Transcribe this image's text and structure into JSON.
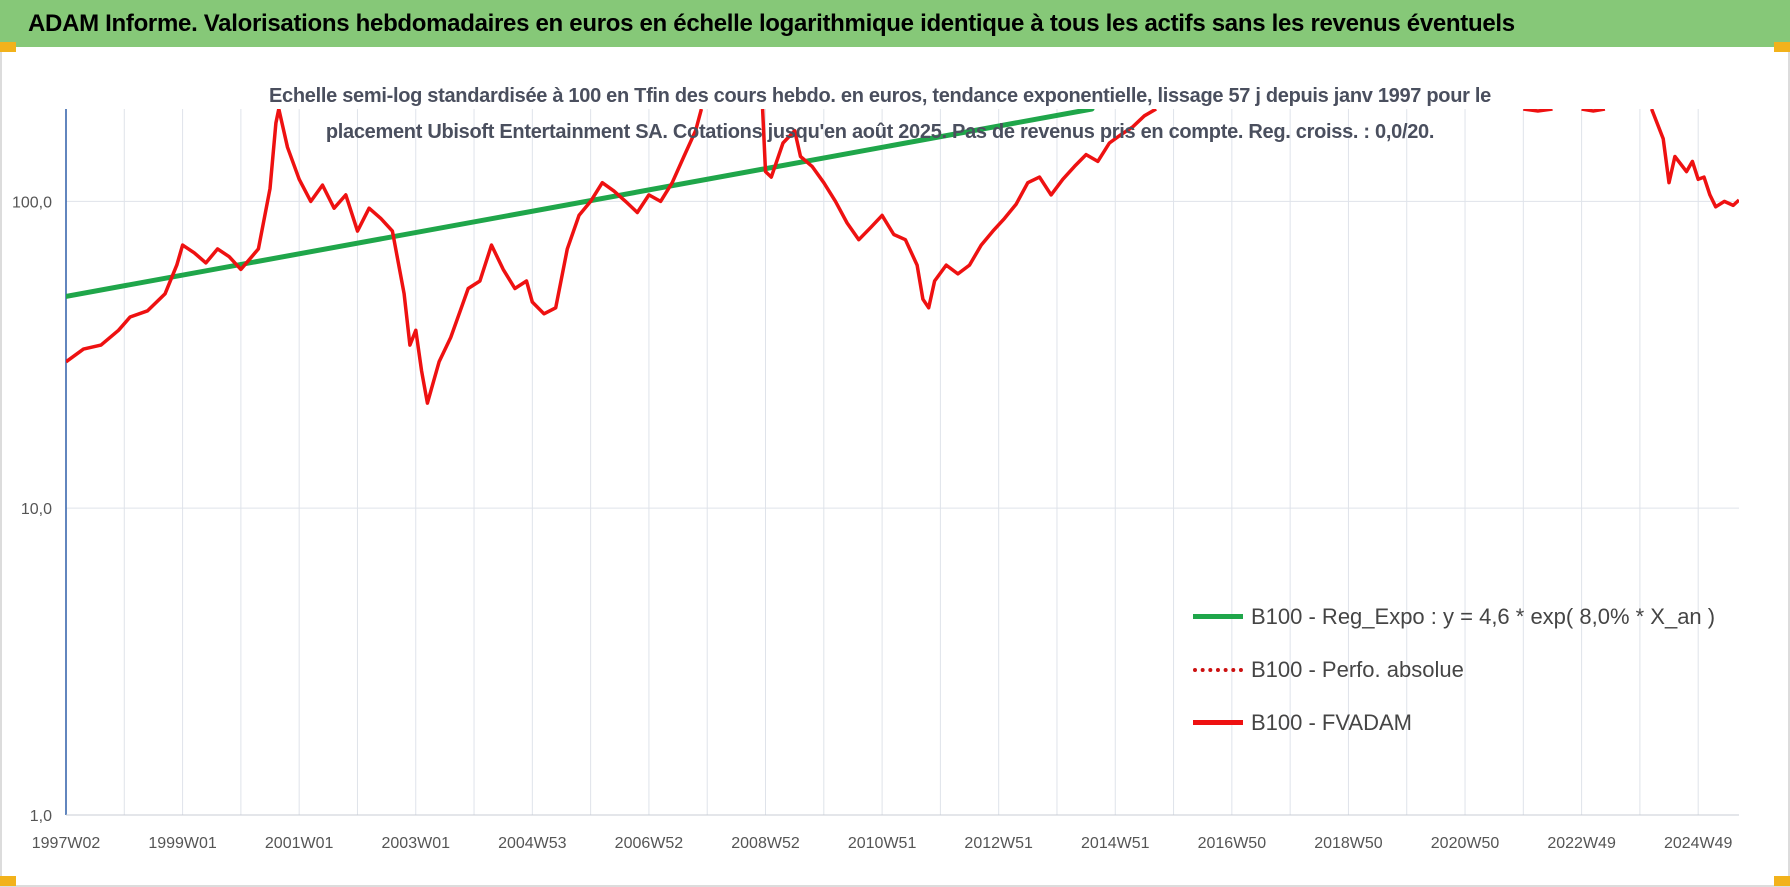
{
  "header": {
    "title": "ADAM Informe. Valorisations hebdomadaires en euros en échelle logarithmique identique à tous les actifs sans les revenus éventuels"
  },
  "chart_data": {
    "type": "line",
    "title_line1": "Echelle semi-log standardisée à 100 en Tfin des cours hebdo. en euros, tendance exponentielle, lissage 57 j depuis janv 1997 pour le",
    "title_line2": "placement Ubisoft Entertainment SA. Cotations jusqu'en août 2025. Pas de revenus pris en compte. Reg. croiss. : 0,0/20.",
    "y_scale": "log",
    "ylim": [
      1,
      200
    ],
    "y_ticks": [
      1,
      10,
      100
    ],
    "y_tick_labels": [
      "1,0",
      "10,0",
      "100,0"
    ],
    "xlim": [
      1997.0,
      2025.7
    ],
    "x_ticks": [
      1997.0,
      1999.0,
      2001.0,
      2003.0,
      2005.0,
      2007.0,
      2009.0,
      2011.0,
      2013.0,
      2015.0,
      2017.0,
      2019.0,
      2021.0,
      2023.0,
      2025.0
    ],
    "x_tick_labels": [
      "1997W02",
      "1999W01",
      "2001W01",
      "2003W01",
      "2004W53",
      "2006W52",
      "2008W52",
      "2010W51",
      "2012W51",
      "2014W51",
      "2016W50",
      "2018W50",
      "2020W50",
      "2022W49",
      "2024W49"
    ],
    "grid": true,
    "legend_position": "bottom-right",
    "colors": {
      "trend": "#1fa64a",
      "price": "#ee1111",
      "perf": "#cc1111",
      "header_bg": "#86c878",
      "accent": "#f2b21b"
    },
    "series": [
      {
        "name": "B100 - Reg_Expo : y = 4,6 * exp( 8,0% *  X_an )",
        "style": "solid",
        "color": "#1fa64a",
        "points": [
          [
            1997.0,
            49
          ],
          [
            2014.6,
            200
          ]
        ]
      },
      {
        "name": "B100 - Perfo. absolue",
        "style": "dotted",
        "color": "#cc1111",
        "points": []
      },
      {
        "name": "B100 - FVADAM",
        "style": "solid",
        "color": "#ee1111",
        "points": [
          [
            1997.0,
            30
          ],
          [
            1997.3,
            33
          ],
          [
            1997.6,
            34
          ],
          [
            1997.9,
            38
          ],
          [
            1998.1,
            42
          ],
          [
            1998.4,
            44
          ],
          [
            1998.7,
            50
          ],
          [
            1998.9,
            62
          ],
          [
            1999.0,
            72
          ],
          [
            1999.2,
            68
          ],
          [
            1999.4,
            63
          ],
          [
            1999.6,
            70
          ],
          [
            1999.8,
            66
          ],
          [
            2000.0,
            60
          ],
          [
            2000.3,
            70
          ],
          [
            2000.5,
            110
          ],
          [
            2000.6,
            180
          ],
          [
            2000.65,
            200
          ],
          [
            2000.8,
            150
          ],
          [
            2001.0,
            118
          ],
          [
            2001.2,
            100
          ],
          [
            2001.4,
            113
          ],
          [
            2001.6,
            95
          ],
          [
            2001.8,
            105
          ],
          [
            2002.0,
            80
          ],
          [
            2002.2,
            95
          ],
          [
            2002.4,
            88
          ],
          [
            2002.6,
            80
          ],
          [
            2002.8,
            50
          ],
          [
            2002.9,
            34
          ],
          [
            2003.0,
            38
          ],
          [
            2003.1,
            28
          ],
          [
            2003.2,
            22
          ],
          [
            2003.4,
            30
          ],
          [
            2003.6,
            36
          ],
          [
            2003.8,
            46
          ],
          [
            2003.9,
            52
          ],
          [
            2004.1,
            55
          ],
          [
            2004.3,
            72
          ],
          [
            2004.5,
            60
          ],
          [
            2004.7,
            52
          ],
          [
            2004.9,
            55
          ],
          [
            2005.0,
            47
          ],
          [
            2005.2,
            43
          ],
          [
            2005.4,
            45
          ],
          [
            2005.6,
            70
          ],
          [
            2005.8,
            90
          ],
          [
            2006.0,
            100
          ],
          [
            2006.2,
            115
          ],
          [
            2006.4,
            108
          ],
          [
            2006.6,
            100
          ],
          [
            2006.8,
            92
          ],
          [
            2007.0,
            105
          ],
          [
            2007.2,
            100
          ],
          [
            2007.4,
            115
          ],
          [
            2007.6,
            140
          ],
          [
            2007.8,
            170
          ],
          [
            2007.9,
            200
          ],
          [
            2008.95,
            200
          ],
          [
            2009.0,
            125
          ],
          [
            2009.1,
            120
          ],
          [
            2009.3,
            155
          ],
          [
            2009.5,
            170
          ],
          [
            2009.6,
            140
          ],
          [
            2009.8,
            130
          ],
          [
            2010.0,
            115
          ],
          [
            2010.2,
            100
          ],
          [
            2010.4,
            85
          ],
          [
            2010.6,
            75
          ],
          [
            2010.8,
            82
          ],
          [
            2011.0,
            90
          ],
          [
            2011.2,
            78
          ],
          [
            2011.4,
            75
          ],
          [
            2011.6,
            62
          ],
          [
            2011.7,
            48
          ],
          [
            2011.8,
            45
          ],
          [
            2011.9,
            55
          ],
          [
            2012.1,
            62
          ],
          [
            2012.3,
            58
          ],
          [
            2012.5,
            62
          ],
          [
            2012.7,
            72
          ],
          [
            2012.9,
            80
          ],
          [
            2013.1,
            88
          ],
          [
            2013.3,
            98
          ],
          [
            2013.5,
            115
          ],
          [
            2013.7,
            120
          ],
          [
            2013.9,
            105
          ],
          [
            2014.1,
            118
          ],
          [
            2014.3,
            130
          ],
          [
            2014.5,
            142
          ],
          [
            2014.7,
            135
          ],
          [
            2014.9,
            155
          ],
          [
            2015.1,
            165
          ],
          [
            2015.3,
            175
          ],
          [
            2015.5,
            190
          ],
          [
            2015.7,
            200
          ],
          [
            2024.2,
            200
          ],
          [
            2024.4,
            160
          ],
          [
            2024.5,
            115
          ],
          [
            2024.6,
            140
          ],
          [
            2024.8,
            125
          ],
          [
            2024.9,
            135
          ],
          [
            2025.0,
            118
          ],
          [
            2025.1,
            120
          ],
          [
            2025.2,
            105
          ],
          [
            2025.3,
            96
          ],
          [
            2025.45,
            100
          ],
          [
            2025.6,
            97
          ],
          [
            2025.7,
            101
          ]
        ],
        "clipped_peaks": [
          [
            2022.0,
            200
          ],
          [
            2022.25,
            197
          ],
          [
            2022.5,
            200
          ],
          [
            2023.0,
            200
          ],
          [
            2023.2,
            197
          ],
          [
            2023.4,
            200
          ]
        ]
      }
    ]
  }
}
